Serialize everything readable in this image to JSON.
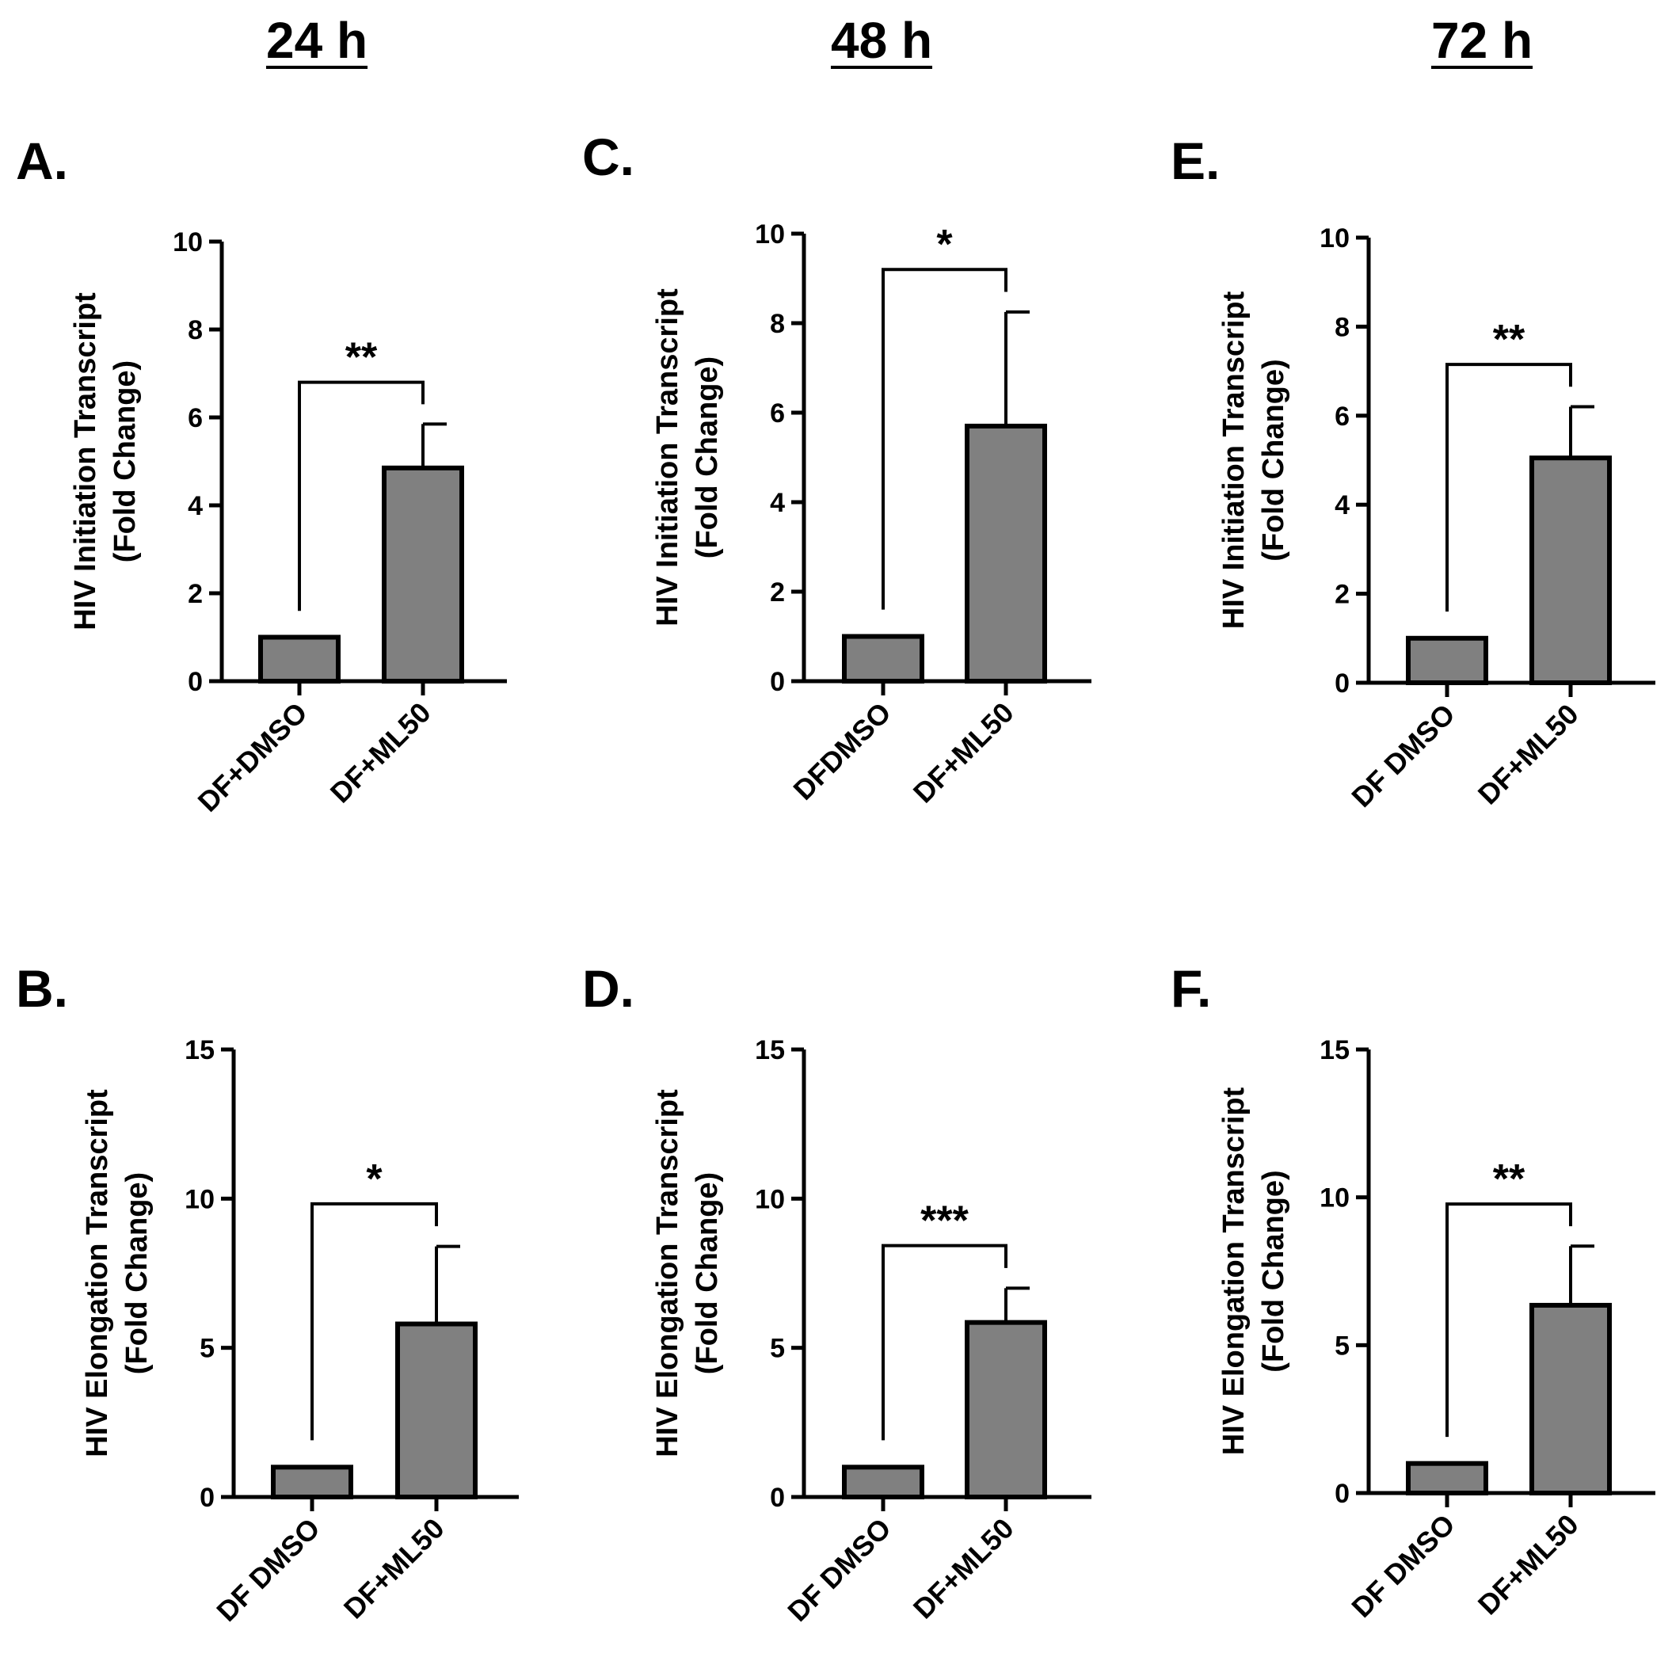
{
  "columns": [
    "24 h",
    "48 h",
    "72 h"
  ],
  "colors": {
    "bar_fill": "#808080",
    "stroke": "#000000"
  },
  "chart_data": [
    {
      "panel": "A.",
      "type": "bar",
      "ylabel_line1": "HIV Initiation Transcript",
      "ylabel_line2": "(Fold Change)",
      "ylim": [
        0,
        10
      ],
      "yticks": [
        0,
        2,
        4,
        6,
        8,
        10
      ],
      "categories": [
        "DF+DMSO",
        "DF+ML50"
      ],
      "values": [
        1.0,
        4.85
      ],
      "errors": [
        0,
        1.0
      ],
      "significance": "**"
    },
    {
      "panel": "B.",
      "type": "bar",
      "ylabel_line1": "HIV Elongation Transcript",
      "ylabel_line2": "(Fold Change)",
      "ylim": [
        0,
        15
      ],
      "yticks": [
        0,
        5,
        10,
        15
      ],
      "categories": [
        "DF DMSO",
        "DF+ML50"
      ],
      "values": [
        1.0,
        5.8
      ],
      "errors": [
        0,
        2.6
      ],
      "significance": "*"
    },
    {
      "panel": "C.",
      "type": "bar",
      "ylabel_line1": "HIV Initiation Transcript",
      "ylabel_line2": "(Fold Change)",
      "ylim": [
        0,
        10
      ],
      "yticks": [
        0,
        2,
        4,
        6,
        8,
        10
      ],
      "categories": [
        "DFDMSO",
        "DF+ML50"
      ],
      "values": [
        1.0,
        5.7
      ],
      "errors": [
        0,
        2.55
      ],
      "significance": "*"
    },
    {
      "panel": "D.",
      "type": "bar",
      "ylabel_line1": "HIV Elongation Transcript",
      "ylabel_line2": "(Fold Change)",
      "ylim": [
        0,
        15
      ],
      "yticks": [
        0,
        5,
        10,
        15
      ],
      "categories": [
        "DF DMSO",
        "DF+ML50"
      ],
      "values": [
        1.0,
        5.85
      ],
      "errors": [
        0,
        1.15
      ],
      "significance": "***"
    },
    {
      "panel": "E.",
      "type": "bar",
      "ylabel_line1": "HIV Initiation Transcript",
      "ylabel_line2": "(Fold Change)",
      "ylim": [
        0,
        10
      ],
      "yticks": [
        0,
        2,
        4,
        6,
        8,
        10
      ],
      "categories": [
        "DF DMSO",
        "DF+ML50"
      ],
      "values": [
        1.0,
        5.05
      ],
      "errors": [
        0,
        1.15
      ],
      "significance": "**"
    },
    {
      "panel": "F.",
      "type": "bar",
      "ylabel_line1": "HIV Elongation Transcript",
      "ylabel_line2": "(Fold Change)",
      "ylim": [
        0,
        15
      ],
      "yticks": [
        0,
        5,
        10,
        15
      ],
      "categories": [
        "DF DMSO",
        "DF+ML50"
      ],
      "values": [
        1.0,
        6.35
      ],
      "errors": [
        0,
        2.0
      ],
      "significance": "**"
    }
  ]
}
